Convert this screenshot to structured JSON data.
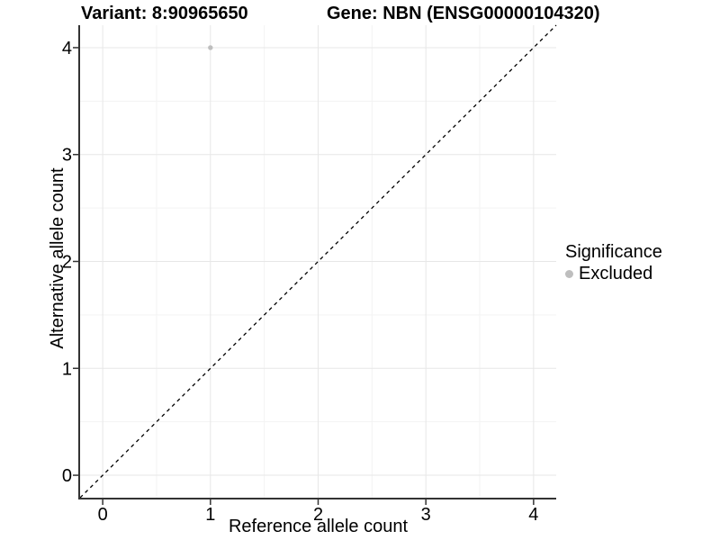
{
  "header": {
    "variant_title": "Variant: 8:90965650",
    "gene_title": "Gene: NBN (ENSG00000104320)"
  },
  "legend": {
    "title": "Significance",
    "items": [
      {
        "label": "Excluded",
        "color": "#bebebe",
        "marker": "circle"
      }
    ]
  },
  "colors": {
    "background": "#ffffff",
    "text": "#000000",
    "axis": "#333333",
    "grid_major": "#e7e7e7",
    "grid_minor": "#f3f3f3",
    "reference_line": "#000000",
    "excluded_point": "#bebebe"
  },
  "chart_data": {
    "type": "scatter",
    "title": "",
    "xlabel": "Reference allele count",
    "ylabel": "Alternative allele count",
    "x_ticks": [
      0,
      1,
      2,
      3,
      4
    ],
    "y_ticks": [
      0,
      1,
      2,
      3,
      4
    ],
    "x_minor_breaks": [
      0.5,
      1.5,
      2.5,
      3.5
    ],
    "y_minor_breaks": [
      0.5,
      1.5,
      2.5,
      3.5
    ],
    "xlim": [
      -0.21,
      4.21
    ],
    "ylim": [
      -0.21,
      4.21
    ],
    "grid": "major+minor",
    "legend_position": "right",
    "reference_line": {
      "kind": "identity",
      "equation": "y = x",
      "style": "dashed"
    },
    "series": [
      {
        "name": "Excluded",
        "color": "#bebebe",
        "points": [
          {
            "x": 1,
            "y": 4
          }
        ]
      }
    ]
  }
}
